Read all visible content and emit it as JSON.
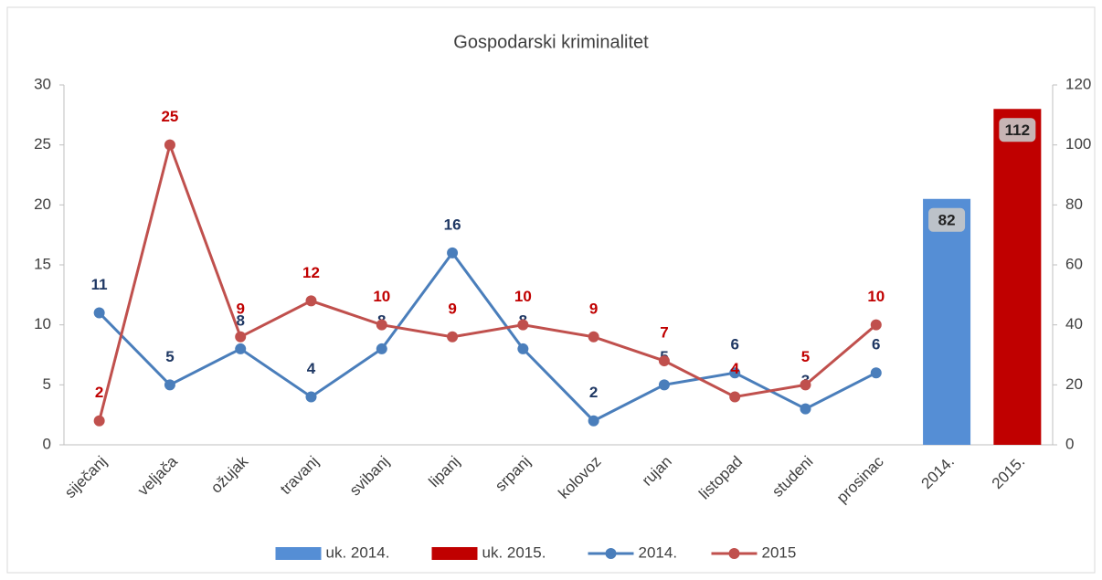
{
  "chart_data": {
    "type": "combo",
    "title": "Gospodarski kriminalitet",
    "categories": [
      "siječanj",
      "veljača",
      "ožujak",
      "travanj",
      "svibanj",
      "lipanj",
      "srpanj",
      "kolovoz",
      "rujan",
      "listopad",
      "studeni",
      "prosinac",
      "2014.",
      "2015."
    ],
    "series": [
      {
        "name": "uk. 2014.",
        "type": "bar",
        "axis": "y2",
        "color": "#558ed5",
        "values": [
          null,
          null,
          null,
          null,
          null,
          null,
          null,
          null,
          null,
          null,
          null,
          null,
          82,
          null
        ]
      },
      {
        "name": "uk. 2015.",
        "type": "bar",
        "axis": "y2",
        "color": "#c00000",
        "values": [
          null,
          null,
          null,
          null,
          null,
          null,
          null,
          null,
          null,
          null,
          null,
          null,
          null,
          112
        ]
      },
      {
        "name": "2014.",
        "type": "line",
        "color": "#4a7ebb",
        "label_color": "#1f3864",
        "values": [
          11,
          5,
          8,
          4,
          8,
          16,
          8,
          2,
          5,
          6,
          3,
          6,
          null,
          null
        ]
      },
      {
        "name": "2015",
        "type": "line",
        "color": "#c0504d",
        "label_color": "#c00000",
        "values": [
          2,
          25,
          9,
          12,
          10,
          9,
          10,
          9,
          7,
          4,
          5,
          10,
          null,
          null
        ]
      }
    ],
    "ylim": [
      0,
      30
    ],
    "yticks": [
      0,
      5,
      10,
      15,
      20,
      25,
      30
    ],
    "y2lim": [
      0,
      120
    ],
    "y2ticks": [
      0,
      20,
      40,
      60,
      80,
      100,
      120
    ],
    "legend": "bottom",
    "grid": false
  }
}
